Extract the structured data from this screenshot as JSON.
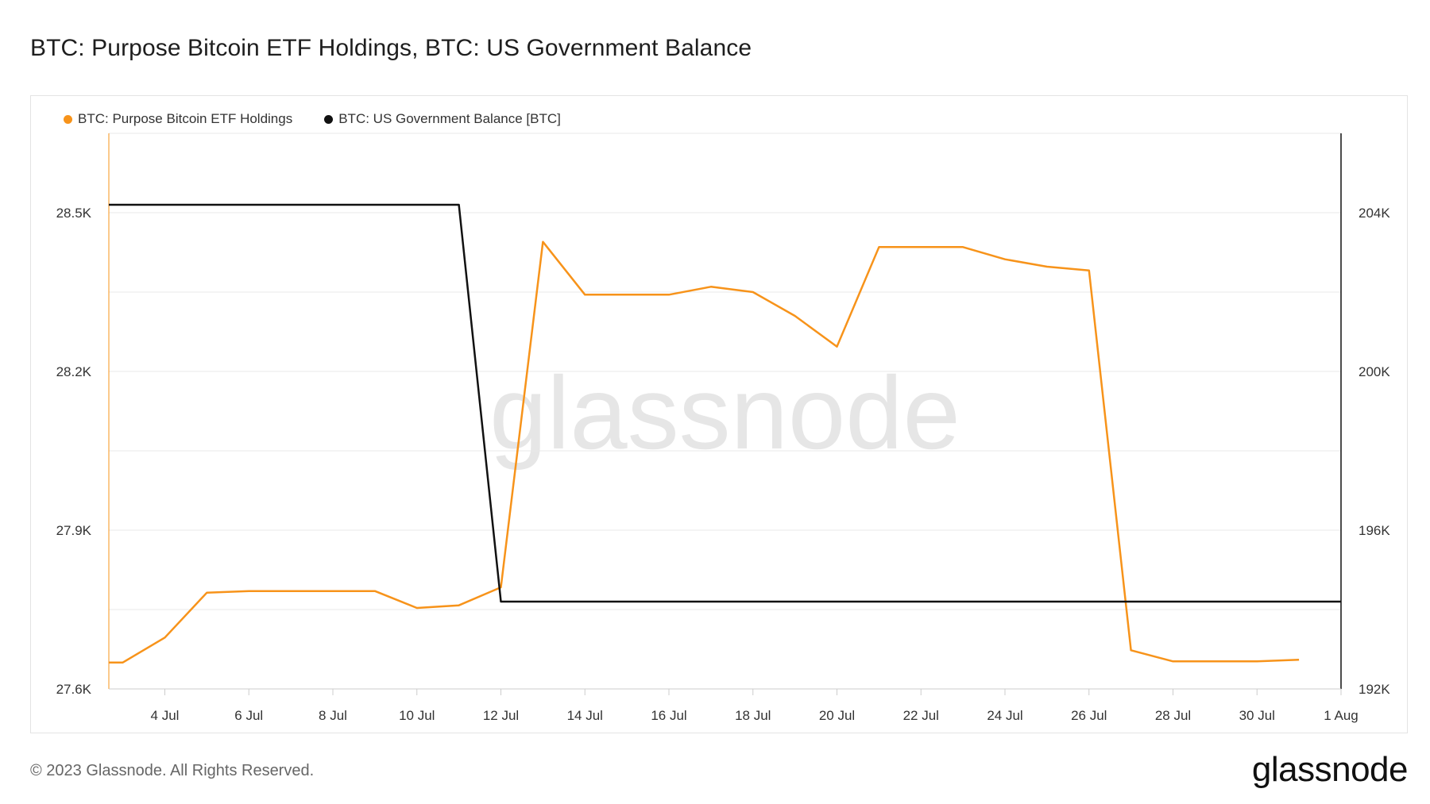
{
  "page": {
    "title": "BTC: Purpose Bitcoin ETF Holdings, BTC: US Government Balance",
    "footer": "© 2023 Glassnode. All Rights Reserved.",
    "logo": "glassnode",
    "watermark": "glassnode"
  },
  "chart_data": {
    "type": "line",
    "title": "BTC: Purpose Bitcoin ETF Holdings, BTC: US Government Balance",
    "x": [
      "2023-07-03",
      "2023-07-04",
      "2023-07-05",
      "2023-07-06",
      "2023-07-07",
      "2023-07-08",
      "2023-07-09",
      "2023-07-10",
      "2023-07-11",
      "2023-07-12",
      "2023-07-13",
      "2023-07-14",
      "2023-07-15",
      "2023-07-16",
      "2023-07-17",
      "2023-07-18",
      "2023-07-19",
      "2023-07-20",
      "2023-07-21",
      "2023-07-22",
      "2023-07-23",
      "2023-07-24",
      "2023-07-25",
      "2023-07-26",
      "2023-07-27",
      "2023-07-28",
      "2023-07-29",
      "2023-07-30",
      "2023-07-31",
      "2023-08-01"
    ],
    "x_tick_labels": [
      "4 Jul",
      "6 Jul",
      "8 Jul",
      "10 Jul",
      "12 Jul",
      "14 Jul",
      "16 Jul",
      "18 Jul",
      "20 Jul",
      "22 Jul",
      "24 Jul",
      "26 Jul",
      "28 Jul",
      "30 Jul",
      "1 Aug"
    ],
    "x_tick_dates": [
      "2023-07-04",
      "2023-07-06",
      "2023-07-08",
      "2023-07-10",
      "2023-07-12",
      "2023-07-14",
      "2023-07-16",
      "2023-07-18",
      "2023-07-20",
      "2023-07-22",
      "2023-07-24",
      "2023-07-26",
      "2023-07-28",
      "2023-07-30",
      "2023-08-01"
    ],
    "xlim": [
      "2023-07-02T16:00",
      "2023-08-01"
    ],
    "y_left": {
      "ylim": [
        27600,
        28650
      ],
      "ticks": [
        27600,
        27900,
        28200,
        28500
      ],
      "tick_labels": [
        "27.6K",
        "27.9K",
        "28.2K",
        "28.5K"
      ]
    },
    "y_right": {
      "ylim": [
        192000,
        206000
      ],
      "ticks": [
        192000,
        196000,
        200000,
        204000
      ],
      "tick_labels": [
        "192K",
        "196K",
        "200K",
        "204K"
      ]
    },
    "grid": true,
    "legend_position": "top-left",
    "series": [
      {
        "name": "BTC: Purpose Bitcoin ETF Holdings",
        "color": "#f7931a",
        "axis": "left",
        "x": [
          "2023-07-02T16:00",
          "2023-07-03",
          "2023-07-04",
          "2023-07-05",
          "2023-07-06",
          "2023-07-07",
          "2023-07-08",
          "2023-07-09",
          "2023-07-10",
          "2023-07-11",
          "2023-07-12",
          "2023-07-13",
          "2023-07-14",
          "2023-07-15",
          "2023-07-16",
          "2023-07-17",
          "2023-07-18",
          "2023-07-19",
          "2023-07-20",
          "2023-07-21",
          "2023-07-22",
          "2023-07-23",
          "2023-07-24",
          "2023-07-25",
          "2023-07-26",
          "2023-07-27",
          "2023-07-28",
          "2023-07-29",
          "2023-07-30",
          "2023-07-31"
        ],
        "values": [
          27650,
          27650,
          27697,
          27782,
          27785,
          27785,
          27785,
          27785,
          27753,
          27758,
          27792,
          28445,
          28345,
          28345,
          28345,
          28360,
          28350,
          28305,
          28247,
          28435,
          28435,
          28435,
          28412,
          28398,
          28391,
          27673,
          27652,
          27652,
          27652,
          27655
        ]
      },
      {
        "name": "BTC: US Government Balance [BTC]",
        "color": "#111111",
        "axis": "right",
        "x": [
          "2023-07-02T16:00",
          "2023-07-11",
          "2023-07-12",
          "2023-08-01"
        ],
        "values": [
          204200,
          204200,
          194200,
          194200
        ]
      }
    ]
  }
}
